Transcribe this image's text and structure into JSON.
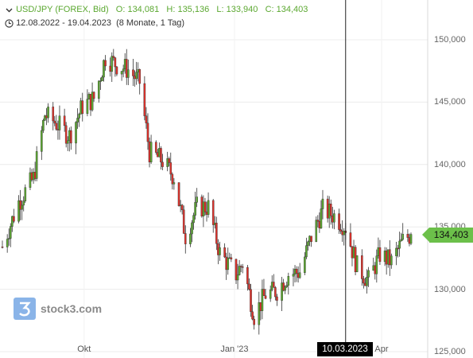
{
  "header": {
    "title": "USD/JPY (FOREX, Bid)",
    "open": "O: 134,081",
    "high": "H: 135,136",
    "low": "L: 133,940",
    "close": "C: 134,403",
    "range": "12.08.2022 - 19.04.2023",
    "period": "(8 Monate, 1 Tag)",
    "clock_icon": "clock-icon"
  },
  "watermark": {
    "text": "stock3.com",
    "logo_icon": "stock3-logo-icon"
  },
  "price_badge": "134,403",
  "crosshair_label": "10.03.2023",
  "colors": {
    "up": "#5ba830",
    "down": "#e0312a",
    "badge": "#6cc04a"
  },
  "chart_data": {
    "type": "candlestick",
    "ylim": [
      125000,
      152000
    ],
    "yticks": [
      "125,000",
      "130,000",
      "135,000",
      "140,000",
      "145,000",
      "150,000"
    ],
    "ytick_values": [
      125000,
      130000,
      135000,
      140000,
      145000,
      150000
    ],
    "xticks": [
      "Okt",
      "Jan '23",
      "Apr"
    ],
    "xtick_dates": [
      "2022-10-01",
      "2023-01-01",
      "2023-04-01"
    ],
    "crosshair_date": "2023-03-10",
    "last_close": 134403,
    "x_start": "2022-08-12",
    "x_end": "2023-04-19",
    "close_path": [
      [
        "2022-08-12",
        133400
      ],
      [
        "2022-08-22",
        137000
      ],
      [
        "2022-08-31",
        138900
      ],
      [
        "2022-09-07",
        144000
      ],
      [
        "2022-09-14",
        143300
      ],
      [
        "2022-09-22",
        142300
      ],
      [
        "2022-09-30",
        144700
      ],
      [
        "2022-10-07",
        145300
      ],
      [
        "2022-10-14",
        148600
      ],
      [
        "2022-10-21",
        148000
      ],
      [
        "2022-10-28",
        147600
      ],
      [
        "2022-11-04",
        146600
      ],
      [
        "2022-11-10",
        141000
      ],
      [
        "2022-11-18",
        140300
      ],
      [
        "2022-11-25",
        139000
      ],
      [
        "2022-12-02",
        134300
      ],
      [
        "2022-12-09",
        136600
      ],
      [
        "2022-12-16",
        136600
      ],
      [
        "2022-12-23",
        132900
      ],
      [
        "2023-01-02",
        131200
      ],
      [
        "2023-01-06",
        132100
      ],
      [
        "2023-01-13",
        127900
      ],
      [
        "2023-01-20",
        129600
      ],
      [
        "2023-01-27",
        129900
      ],
      [
        "2023-02-03",
        131200
      ],
      [
        "2023-02-10",
        131400
      ],
      [
        "2023-02-17",
        134200
      ],
      [
        "2023-02-24",
        136400
      ],
      [
        "2023-03-03",
        135900
      ],
      [
        "2023-03-10",
        135000
      ],
      [
        "2023-03-17",
        131800
      ],
      [
        "2023-03-24",
        130700
      ],
      [
        "2023-03-31",
        132800
      ],
      [
        "2023-04-07",
        132200
      ],
      [
        "2023-04-14",
        133900
      ],
      [
        "2023-04-19",
        134403
      ]
    ]
  }
}
